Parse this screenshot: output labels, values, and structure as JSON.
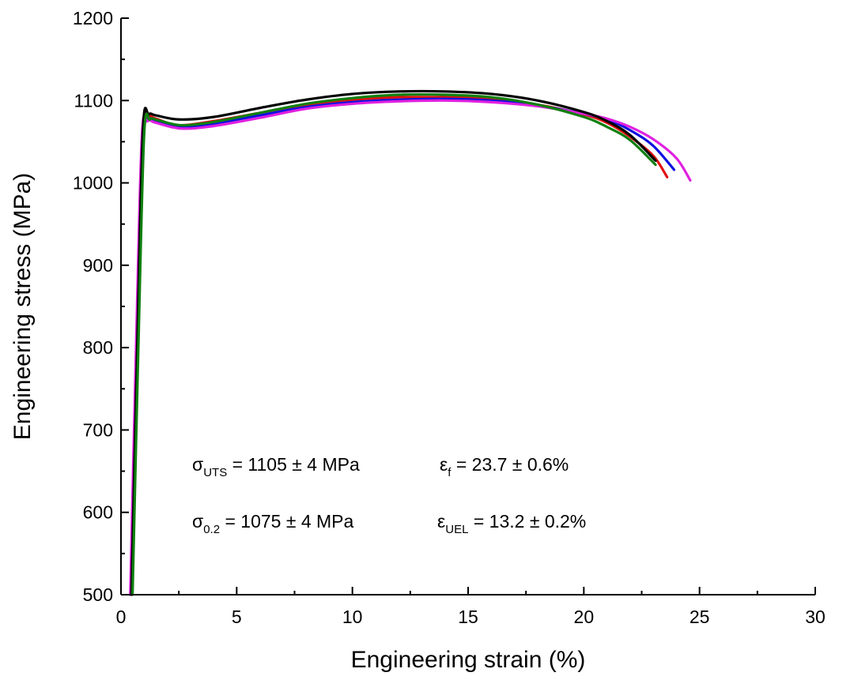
{
  "chart_data": {
    "type": "line",
    "xlabel": "Engineering strain (%)",
    "ylabel": "Engineering stress (MPa)",
    "xlim": [
      0,
      30
    ],
    "ylim": [
      500,
      1200
    ],
    "xticks": [
      0,
      5,
      10,
      15,
      20,
      25,
      30
    ],
    "yticks": [
      500,
      600,
      700,
      800,
      900,
      1000,
      1100,
      1200
    ],
    "grid": false,
    "annotations": [
      {
        "symbol": "σ",
        "sub": "UTS",
        "text": " = 1105 ± 4 MPa"
      },
      {
        "symbol": "ε",
        "sub": "f",
        "text": " = 23.7 ± 0.6%"
      },
      {
        "symbol": "σ",
        "sub": "0.2",
        "text": " = 1075 ± 4 MPa"
      },
      {
        "symbol": "ε",
        "sub": "UEL",
        "text": " = 13.2 ± 0.2%"
      }
    ],
    "series": [
      {
        "color": "#e01010",
        "points": [
          [
            0.45,
            500
          ],
          [
            0.7,
            800
          ],
          [
            0.95,
            1060
          ],
          [
            1.2,
            1080
          ],
          [
            1.5,
            1078
          ],
          [
            2.5,
            1070
          ],
          [
            4,
            1075
          ],
          [
            6,
            1085
          ],
          [
            8,
            1095
          ],
          [
            10,
            1101
          ],
          [
            12,
            1104
          ],
          [
            14,
            1104
          ],
          [
            16,
            1102
          ],
          [
            18,
            1095
          ],
          [
            20,
            1083
          ],
          [
            21,
            1073
          ],
          [
            22,
            1056
          ],
          [
            23,
            1033
          ],
          [
            23.6,
            1007
          ]
        ]
      },
      {
        "color": "#1010e0",
        "points": [
          [
            0.45,
            500
          ],
          [
            0.7,
            800
          ],
          [
            0.95,
            1058
          ],
          [
            1.2,
            1077
          ],
          [
            1.5,
            1076
          ],
          [
            2.5,
            1068
          ],
          [
            4,
            1072
          ],
          [
            6,
            1082
          ],
          [
            8,
            1092
          ],
          [
            10,
            1098
          ],
          [
            12,
            1101
          ],
          [
            14,
            1102
          ],
          [
            16,
            1100
          ],
          [
            18,
            1094
          ],
          [
            20,
            1084
          ],
          [
            21,
            1077
          ],
          [
            22,
            1064
          ],
          [
            23,
            1045
          ],
          [
            23.9,
            1016
          ]
        ]
      },
      {
        "color": "#e020e0",
        "points": [
          [
            0.4,
            500
          ],
          [
            0.65,
            800
          ],
          [
            0.9,
            1055
          ],
          [
            1.15,
            1075
          ],
          [
            1.5,
            1073
          ],
          [
            2.6,
            1066
          ],
          [
            4,
            1069
          ],
          [
            6,
            1079
          ],
          [
            8,
            1090
          ],
          [
            10,
            1096
          ],
          [
            12,
            1099
          ],
          [
            14,
            1100
          ],
          [
            16,
            1098
          ],
          [
            18,
            1093
          ],
          [
            20,
            1084
          ],
          [
            21,
            1078
          ],
          [
            22,
            1068
          ],
          [
            23,
            1053
          ],
          [
            24,
            1030
          ],
          [
            24.6,
            1003
          ]
        ]
      },
      {
        "color": "#000000",
        "points": [
          [
            0.45,
            500
          ],
          [
            0.7,
            800
          ],
          [
            0.95,
            1065
          ],
          [
            1.2,
            1083
          ],
          [
            1.5,
            1082
          ],
          [
            2.5,
            1077
          ],
          [
            4,
            1080
          ],
          [
            6,
            1091
          ],
          [
            8,
            1101
          ],
          [
            10,
            1108
          ],
          [
            12,
            1111
          ],
          [
            14,
            1111
          ],
          [
            16,
            1108
          ],
          [
            18,
            1100
          ],
          [
            20,
            1086
          ],
          [
            21,
            1075
          ],
          [
            22,
            1058
          ],
          [
            23.1,
            1027
          ]
        ]
      },
      {
        "color": "#108010",
        "points": [
          [
            0.5,
            500
          ],
          [
            0.75,
            800
          ],
          [
            1.0,
            1058
          ],
          [
            1.25,
            1077
          ],
          [
            1.6,
            1076
          ],
          [
            2.6,
            1070
          ],
          [
            4,
            1074
          ],
          [
            6,
            1085
          ],
          [
            8,
            1096
          ],
          [
            10,
            1103
          ],
          [
            12,
            1107
          ],
          [
            14,
            1107
          ],
          [
            16,
            1104
          ],
          [
            18,
            1095
          ],
          [
            20,
            1080
          ],
          [
            21,
            1068
          ],
          [
            22,
            1052
          ],
          [
            23.1,
            1022
          ]
        ]
      }
    ]
  }
}
